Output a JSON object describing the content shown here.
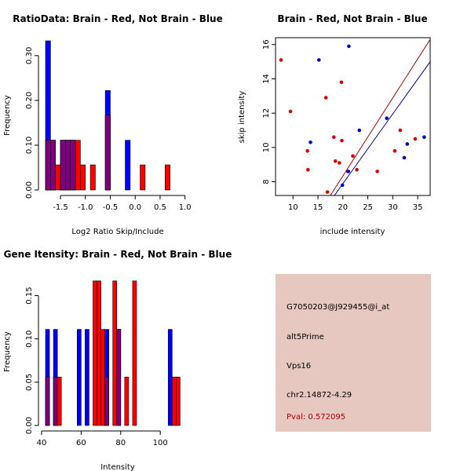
{
  "chart_data": [
    {
      "type": "bar",
      "title": "RatioData: Brain - Red, Not Brain - Blue",
      "xlabel": "Log2 Ratio Skip/Include",
      "ylabel": "Frequency",
      "xlim": [
        -1.8,
        1.1
      ],
      "ylim": [
        0,
        0.34
      ],
      "xticks": [
        "-1.5",
        "-1.0",
        "-0.5",
        "0.0",
        "0.5",
        "1.0"
      ],
      "xtick_values": [
        -1.5,
        -1.0,
        -0.5,
        0.0,
        0.5,
        1.0
      ],
      "yticks": [
        "0.00",
        "0.10",
        "0.20",
        "0.30"
      ],
      "ytick_values": [
        0.0,
        0.1,
        0.2,
        0.3
      ],
      "bin_width": 0.1,
      "bin_starts": [
        -1.8,
        -1.7,
        -1.6,
        -1.5,
        -1.4,
        -1.3,
        -1.2,
        -1.1,
        -1.0,
        -0.9,
        -0.8,
        -0.7,
        -0.6,
        -0.5,
        -0.4,
        -0.3,
        -0.2,
        -0.1,
        0.0,
        0.1,
        0.2,
        0.3,
        0.4,
        0.5,
        0.6,
        0.7,
        0.8,
        0.9,
        1.0
      ],
      "series": [
        {
          "name": "Not Brain",
          "color": "#0000ff",
          "values": [
            0.333,
            0.111,
            0.0,
            0.111,
            0.111,
            0.111,
            0.0,
            0.0,
            0.0,
            0.0,
            0.0,
            0.0,
            0.222,
            0.0,
            0.0,
            0.0,
            0.111,
            0.0,
            0.0,
            0.0,
            0.0,
            0.0,
            0.0,
            0.0,
            0.0,
            0.0,
            0.0,
            0.0,
            0.0
          ]
        },
        {
          "name": "Brain",
          "color": "#ff0000",
          "values": [
            0.111,
            0.111,
            0.056,
            0.111,
            0.111,
            0.111,
            0.111,
            0.056,
            0.0,
            0.056,
            0.0,
            0.0,
            0.167,
            0.0,
            0.0,
            0.0,
            0.0,
            0.0,
            0.0,
            0.056,
            0.0,
            0.0,
            0.0,
            0.0,
            0.056,
            0.0,
            0.0,
            0.0,
            0.0
          ]
        }
      ]
    },
    {
      "type": "scatter",
      "title": "Brain - Red, Not Brain - Blue",
      "xlabel": "include intensity",
      "ylabel": "skip intensity",
      "xlim": [
        6.5,
        37.5
      ],
      "ylim": [
        7.2,
        16.4
      ],
      "xticks": [
        "10",
        "15",
        "20",
        "25",
        "30",
        "35"
      ],
      "xtick_values": [
        10,
        15,
        20,
        25,
        30,
        35
      ],
      "yticks": [
        "8",
        "10",
        "12",
        "14",
        "16"
      ],
      "ytick_values": [
        8,
        10,
        12,
        14,
        16
      ],
      "series": [
        {
          "name": "Brain",
          "color": "#dd0000",
          "x": [
            7.6,
            9.5,
            12.9,
            13.0,
            16.6,
            16.9,
            18.2,
            18.5,
            19.3,
            19.7,
            19.8,
            21.0,
            22.0,
            22.8,
            26.9,
            30.4,
            31.5,
            34.5
          ],
          "y": [
            15.1,
            12.1,
            9.8,
            8.7,
            12.9,
            7.4,
            10.6,
            9.2,
            9.1,
            13.8,
            10.4,
            8.6,
            9.5,
            8.7,
            8.6,
            9.8,
            11.0,
            10.5
          ]
        },
        {
          "name": "Not Brain",
          "color": "#0000cc",
          "x": [
            13.5,
            15.2,
            19.9,
            21.2,
            21.1,
            23.3,
            28.8,
            32.3,
            32.9,
            36.3
          ],
          "y": [
            10.3,
            15.1,
            7.8,
            15.9,
            8.6,
            11.0,
            11.7,
            9.4,
            10.2,
            10.6
          ]
        }
      ],
      "fit_lines": [
        {
          "name": "Brain fit",
          "color": "#aa0000",
          "x": [
            17.5,
            37.5
          ],
          "y": [
            7.2,
            16.3
          ]
        },
        {
          "name": "Not Brain fit",
          "color": "#000099",
          "x": [
            18.3,
            37.5
          ],
          "y": [
            7.2,
            15.0
          ]
        }
      ]
    },
    {
      "type": "bar",
      "title": "Gene Itensity: Brain - Red, Not Brain - Blue",
      "xlabel": "Intensity",
      "ylabel": "Frequency",
      "xlim": [
        42,
        115
      ],
      "ylim": [
        0,
        0.175
      ],
      "xticks": [
        "40",
        "60",
        "80",
        "100"
      ],
      "xtick_values": [
        40,
        60,
        80,
        100
      ],
      "yticks": [
        "0.00",
        "0.05",
        "0.10",
        "0.15"
      ],
      "ytick_values": [
        0.0,
        0.05,
        0.1,
        0.15
      ],
      "bin_width": 2,
      "bin_starts": [
        42,
        44,
        46,
        48,
        50,
        52,
        54,
        56,
        58,
        60,
        62,
        64,
        66,
        68,
        70,
        72,
        74,
        76,
        78,
        80,
        82,
        84,
        86,
        88,
        90,
        92,
        94,
        96,
        98,
        100,
        102,
        104,
        106,
        108,
        110,
        112
      ],
      "series": [
        {
          "name": "Not Brain",
          "color": "#0000ff",
          "values": [
            0.111,
            0.0,
            0.111,
            0.0,
            0.0,
            0.0,
            0.0,
            0.0,
            0.111,
            0.0,
            0.111,
            0.0,
            0.0,
            0.0,
            0.0,
            0.111,
            0.0,
            0.0,
            0.111,
            0.0,
            0.0,
            0.0,
            0.0,
            0.0,
            0.0,
            0.0,
            0.0,
            0.0,
            0.0,
            0.0,
            0.0,
            0.111,
            0.0,
            0.0,
            0.0,
            0.0
          ]
        },
        {
          "name": "Brain",
          "color": "#ff0000",
          "values": [
            0.056,
            0.0,
            0.056,
            0.056,
            0.0,
            0.0,
            0.0,
            0.0,
            0.0,
            0.0,
            0.0,
            0.0,
            0.167,
            0.167,
            0.111,
            0.056,
            0.0,
            0.167,
            0.111,
            0.0,
            0.056,
            0.0,
            0.167,
            0.0,
            0.0,
            0.0,
            0.0,
            0.0,
            0.0,
            0.0,
            0.0,
            0.0,
            0.056,
            0.056,
            0.0,
            0.0
          ]
        }
      ]
    }
  ],
  "info": {
    "probe": "G7050203@J929455@i_at",
    "event": "alt5Prime",
    "gene": "Vps16",
    "location": "chr2.14872-4.29",
    "pval": "Pval: 0.572095",
    "pval_color": "#b00000",
    "panel_color": "#e6c8c1"
  }
}
